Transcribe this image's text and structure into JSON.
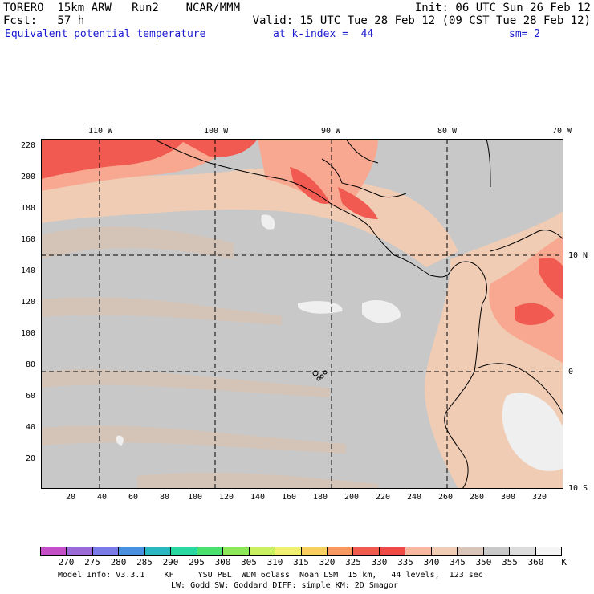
{
  "header": {
    "line1_left": "TORERO  15km ARW   Run2    NCAR/MMM",
    "line1_right": "Init: 06 UTC Sun 26 Feb 12",
    "line2_left": "Fcst:   57 h",
    "line2_right": "Valid: 15 UTC Tue 28 Feb 12 (09 CST Tue 28 Feb 12)",
    "field": "Equivalent potential temperature",
    "level": "at k-index =  44",
    "smooth": "sm= 2"
  },
  "map": {
    "lon_labels": [
      "110 W",
      "100 W",
      "90 W",
      "80 W",
      "70 W"
    ],
    "lat_labels": [
      "10 N",
      "0",
      "10 S"
    ],
    "x_ticks": [
      "20",
      "40",
      "60",
      "80",
      "100",
      "120",
      "140",
      "160",
      "180",
      "200",
      "220",
      "240",
      "260",
      "280",
      "300",
      "320"
    ],
    "y_ticks": [
      "220",
      "200",
      "180",
      "160",
      "140",
      "120",
      "100",
      "80",
      "60",
      "40",
      "20"
    ],
    "gridlines": "dashed",
    "background_value_color": "#c8c8c8"
  },
  "colorbar": {
    "unit": "K",
    "labels": [
      "270",
      "275",
      "280",
      "285",
      "290",
      "295",
      "300",
      "305",
      "310",
      "315",
      "320",
      "325",
      "330",
      "335",
      "340",
      "345",
      "350",
      "355",
      "360"
    ],
    "colors": [
      "#c44ec8",
      "#9a6ad8",
      "#7a7ae8",
      "#4a90e0",
      "#2ab8c0",
      "#28d8a0",
      "#4ae070",
      "#8ce858",
      "#c8f060",
      "#f0f070",
      "#f8d060",
      "#f89860",
      "#f05a50",
      "#f04a48",
      "#f8b8a0",
      "#f0ccb4",
      "#d8c4b8",
      "#c8c8c8",
      "#dcdcdc",
      "#f4f4f4"
    ]
  },
  "footer": {
    "line1": "Model Info: V3.3.1    KF     YSU PBL  WDM 6class  Noah LSM  15 km,   44 levels,  123 sec",
    "line2": "LW: Godd SW: Goddard DIFF: simple KM: 2D Smagor"
  }
}
